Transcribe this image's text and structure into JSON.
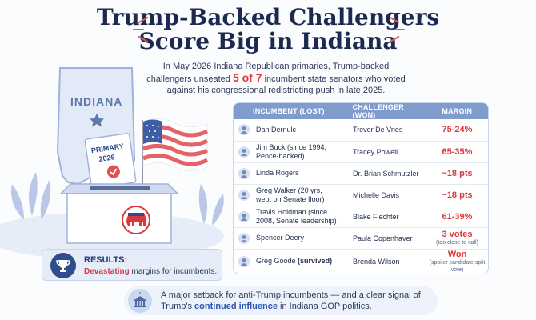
{
  "title": {
    "line1": "Trump-Backed Challengers",
    "line2": "Score Big in Indiana"
  },
  "intro": {
    "before": "In May 2026 Indiana Republican primaries, Trump-backed challengers unseated",
    "highlight": "5 of 7",
    "after": "incumbent state senators who voted against his congressional redistricting push in late 2025."
  },
  "illustration": {
    "state_label": "INDIANA",
    "ballot_line1": "PRIMARY",
    "ballot_line2": "2026"
  },
  "table": {
    "headers": {
      "incumbent": "INCUMBENT (LOST)",
      "challenger": "CHALLENGER (WON)",
      "margin": "MARGIN"
    },
    "rows": [
      {
        "incumbent": "Dan Dernulc",
        "challenger": "Trevor De Vries",
        "margin": "75-24%",
        "note": ""
      },
      {
        "incumbent": "Jim Buck (since 1994, Pence-backed)",
        "challenger": "Tracey Powell",
        "margin": "65-35%",
        "note": ""
      },
      {
        "incumbent": "Linda Rogers",
        "challenger": "Dr. Brian Schmutzler",
        "margin": "~18 pts",
        "note": ""
      },
      {
        "incumbent": "Greg Walker (20 yrs, wept on Senate floor)",
        "challenger": "Michelle Davis",
        "margin": "~18 pts",
        "note": ""
      },
      {
        "incumbent": "Travis Holdman (since 2008, Senate leadership)",
        "challenger": "Blake Fiechter",
        "margin": "61-39%",
        "note": ""
      },
      {
        "incumbent": "Spencer Deery",
        "challenger": "Paula Copenhaver",
        "margin": "3 votes",
        "note": "(too close to call)"
      },
      {
        "incumbent": "Greg Goode",
        "incumbent_suffix": "(survived)",
        "challenger": "Brenda Wilson",
        "margin": "Won",
        "note": "(spoiler candidate split vote)"
      }
    ]
  },
  "results": {
    "title": "RESULTS:",
    "highlight": "Devastating",
    "text": "margins for incumbents."
  },
  "footer": {
    "before": "A major setback for anti-Trump incumbents — and a clear signal of Trump's",
    "highlight": "continued influence",
    "after": "in Indiana GOP politics."
  },
  "colors": {
    "accent_red": "#d9393f",
    "navy": "#1b2a4e",
    "header_blue": "#7f9ccd"
  }
}
